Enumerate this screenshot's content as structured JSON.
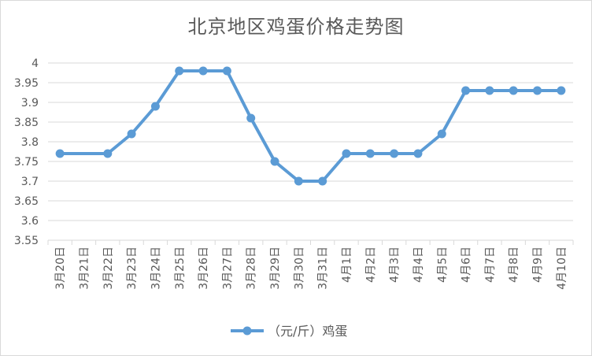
{
  "chart_data": {
    "type": "line",
    "title": "北京地区鸡蛋价格走势图",
    "xlabel": "",
    "ylabel": "",
    "categories": [
      "3月20日",
      "3月21日",
      "3月22日",
      "3月23日",
      "3月24日",
      "3月25日",
      "3月26日",
      "3月27日",
      "3月28日",
      "3月29日",
      "3月30日",
      "3月31日",
      "4月1日",
      "4月2日",
      "4月3日",
      "4月4日",
      "4月5日",
      "4月6日",
      "4月7日",
      "4月8日",
      "4月9日",
      "4月10日"
    ],
    "series": [
      {
        "name": "（元/斤）鸡蛋",
        "values": [
          3.77,
          null,
          3.77,
          3.82,
          3.89,
          3.98,
          3.98,
          3.98,
          3.86,
          3.75,
          3.7,
          3.7,
          3.77,
          3.77,
          3.77,
          3.77,
          3.82,
          3.93,
          3.93,
          3.93,
          3.93,
          3.93
        ]
      }
    ],
    "ylim": [
      3.55,
      4
    ],
    "yticks": [
      "3.55",
      "3.6",
      "3.65",
      "3.7",
      "3.75",
      "3.8",
      "3.85",
      "3.9",
      "3.95",
      "4"
    ],
    "grid": true,
    "legend": "bottom",
    "colors": {
      "line": "#5b9bd5",
      "grid": "#d9d9d9",
      "text": "#595959"
    }
  }
}
